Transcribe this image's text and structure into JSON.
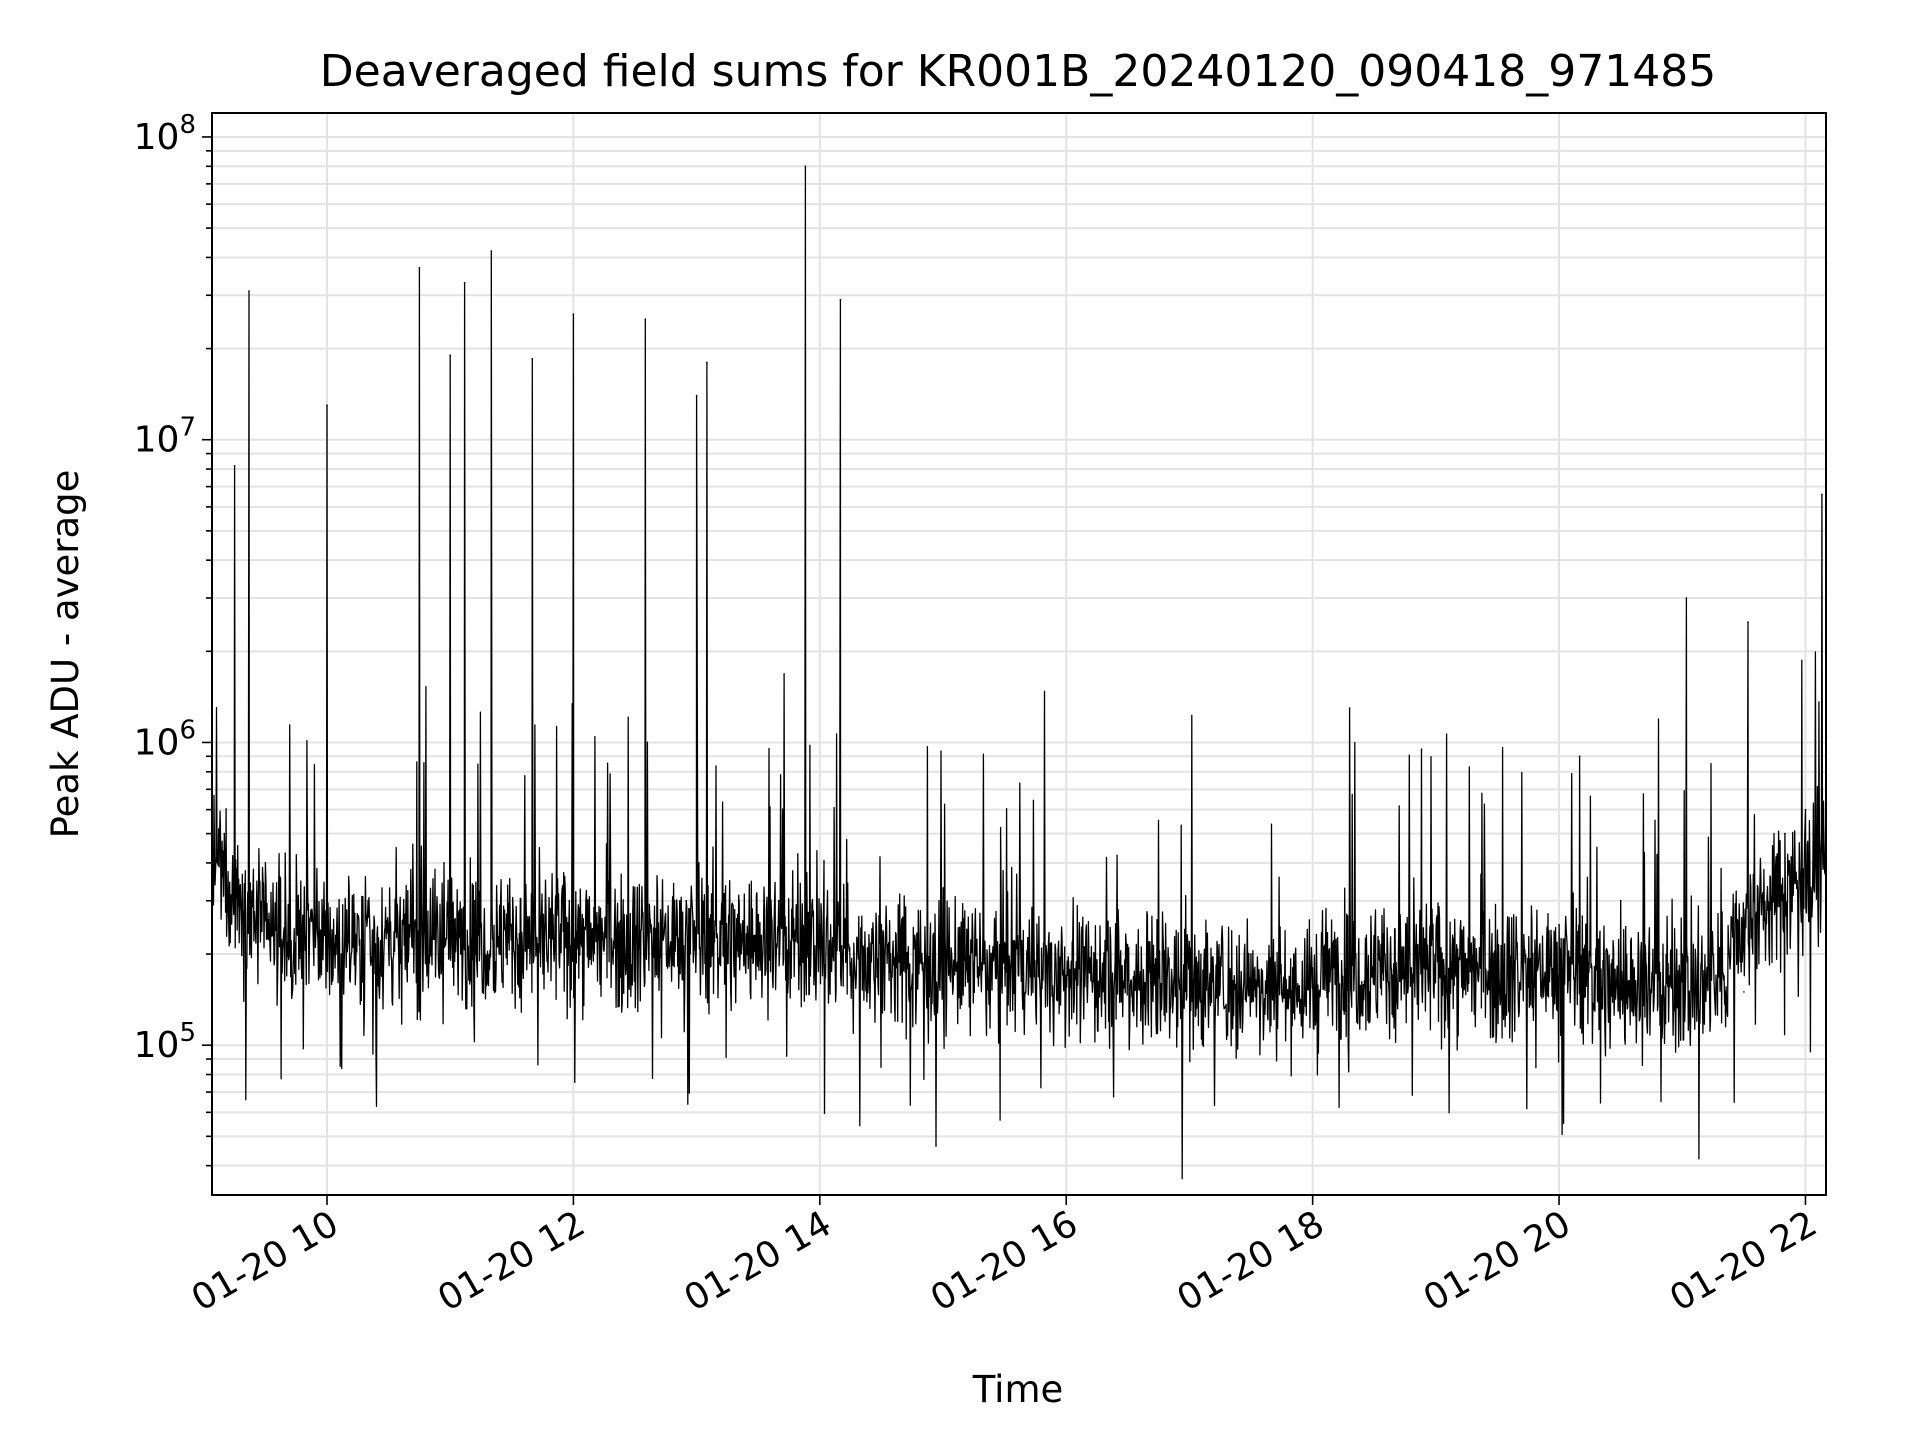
{
  "chart_data": {
    "type": "line",
    "title": "Deaveraged field sums for KR001B_20240120_090418_971485",
    "xlabel": "Time",
    "ylabel": "Peak ADU - average",
    "yscale": "log",
    "ylim": [
      32000,
      120000000
    ],
    "xlim": [
      "2024-01-20 09:04",
      "2024-01-20 22:10"
    ],
    "x_tick_labels": [
      "01-20 10",
      "01-20 12",
      "01-20 14",
      "01-20 16",
      "01-20 18",
      "01-20 20",
      "01-20 22"
    ],
    "y_tick_labels": [
      {
        "base": "10",
        "exp": "5"
      },
      {
        "base": "10",
        "exp": "6"
      },
      {
        "base": "10",
        "exp": "7"
      },
      {
        "base": "10",
        "exp": "8"
      }
    ],
    "grid": true,
    "line_color": "#000000",
    "series": [
      {
        "values_sampled": true,
        "x": [
          "2024-01-20 09:04",
          "2024-01-20 09:10",
          "2024-01-20 09:15",
          "2024-01-20 09:18",
          "2024-01-20 09:22",
          "2024-01-20 09:30",
          "2024-01-20 09:45",
          "2024-01-20 09:55",
          "2024-01-20 10:00",
          "2024-01-20 10:20",
          "2024-01-20 10:40",
          "2024-01-20 10:45",
          "2024-01-20 10:57",
          "2024-01-20 11:00",
          "2024-01-20 11:07",
          "2024-01-20 11:12",
          "2024-01-20 11:20",
          "2024-01-20 11:30",
          "2024-01-20 11:40",
          "2024-01-20 11:58",
          "2024-01-20 12:00",
          "2024-01-20 12:20",
          "2024-01-20 12:35",
          "2024-01-20 12:55",
          "2024-01-20 13:00",
          "2024-01-20 13:05",
          "2024-01-20 13:20",
          "2024-01-20 13:40",
          "2024-01-20 13:53",
          "2024-01-20 14:00",
          "2024-01-20 14:10",
          "2024-01-20 14:13",
          "2024-01-20 14:30",
          "2024-01-20 15:00",
          "2024-01-20 15:30",
          "2024-01-20 16:00",
          "2024-01-20 16:30",
          "2024-01-20 17:00",
          "2024-01-20 17:30",
          "2024-01-20 18:00",
          "2024-01-20 18:18",
          "2024-01-20 18:35",
          "2024-01-20 18:53",
          "2024-01-20 19:30",
          "2024-01-20 20:00",
          "2024-01-20 20:10",
          "2024-01-20 20:30",
          "2024-01-20 21:00",
          "2024-01-20 21:02",
          "2024-01-20 21:30",
          "2024-01-20 21:32",
          "2024-01-20 21:50",
          "2024-01-20 22:00",
          "2024-01-20 22:08",
          "2024-01-20 22:10"
        ],
        "y": [
          800000,
          500000,
          8200000,
          300000,
          31000000,
          400000,
          350000,
          250000,
          13000000,
          300000,
          250000,
          37000000,
          400000,
          19000000,
          33000000,
          300000,
          42000000,
          250000,
          18500000,
          300000,
          26000000,
          250000,
          25000000,
          300000,
          14000000,
          18000000,
          250000,
          300000,
          80000000,
          250000,
          29000000,
          300000,
          250000,
          200000,
          180000,
          170000,
          200000,
          220000,
          200000,
          180000,
          1300000,
          200000,
          950000,
          200000,
          250000,
          900000,
          300000,
          200000,
          3000000,
          150000,
          2500000,
          500000,
          600000,
          6600000,
          700000
        ]
      }
    ]
  }
}
